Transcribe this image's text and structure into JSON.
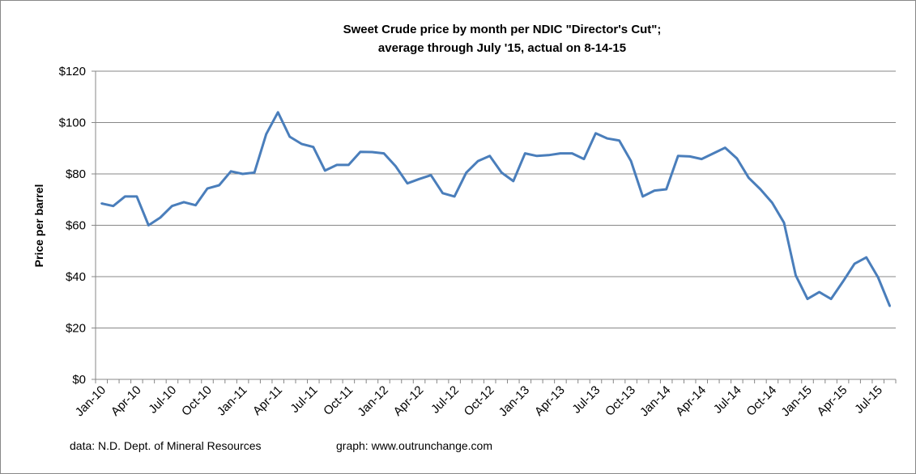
{
  "chart_data": {
    "type": "line",
    "title": [
      "Sweet Crude price by month per NDIC \"Director's Cut\";",
      "average through July '15, actual on 8-14-15"
    ],
    "xlabel": "",
    "ylabel": "Price per barrel",
    "ylim": [
      0,
      120
    ],
    "yticks": [
      0,
      20,
      40,
      60,
      80,
      100,
      120
    ],
    "ytick_labels": [
      "$0",
      "$20",
      "$40",
      "$60",
      "$80",
      "$100",
      "$120"
    ],
    "grid": true,
    "xtick_labels": [
      "Jan-10",
      "Apr-10",
      "Jul-10",
      "Oct-10",
      "Jan-11",
      "Apr-11",
      "Jul-11",
      "Oct-11",
      "Jan-12",
      "Apr-12",
      "Jul-12",
      "Oct-12",
      "Jan-13",
      "Apr-13",
      "Jul-13",
      "Oct-13",
      "Jan-14",
      "Apr-14",
      "Jul-14",
      "Oct-14",
      "Jan-15",
      "Apr-15",
      "Jul-15"
    ],
    "series": [
      {
        "name": "Sweet Crude price",
        "color": "#4A7EBB",
        "start": "Jan-10",
        "values": [
          68.5,
          67.5,
          71.2,
          71.2,
          60,
          63,
          67.5,
          69,
          67.8,
          74.3,
          75.6,
          81,
          80,
          80.5,
          95.5,
          104,
          94.5,
          91.7,
          90.5,
          81.3,
          83.5,
          83.5,
          88.6,
          88.5,
          88,
          83,
          76.3,
          78,
          79.5,
          72.5,
          71.2,
          80.5,
          85,
          87,
          80.5,
          77.2,
          88,
          87,
          87.3,
          88,
          88,
          85.8,
          95.8,
          93.8,
          93,
          85,
          71.2,
          73.5,
          74,
          87,
          86.8,
          85.8,
          88,
          90.2,
          86,
          78.5,
          74,
          68.8,
          61,
          40.5,
          31.3,
          34,
          31.3,
          38,
          45,
          47.5,
          39.7,
          28.5
        ]
      }
    ]
  },
  "footer": {
    "source": "data: N.D. Dept. of Mineral Resources",
    "graph": "graph:  www.outrunchange.com"
  }
}
